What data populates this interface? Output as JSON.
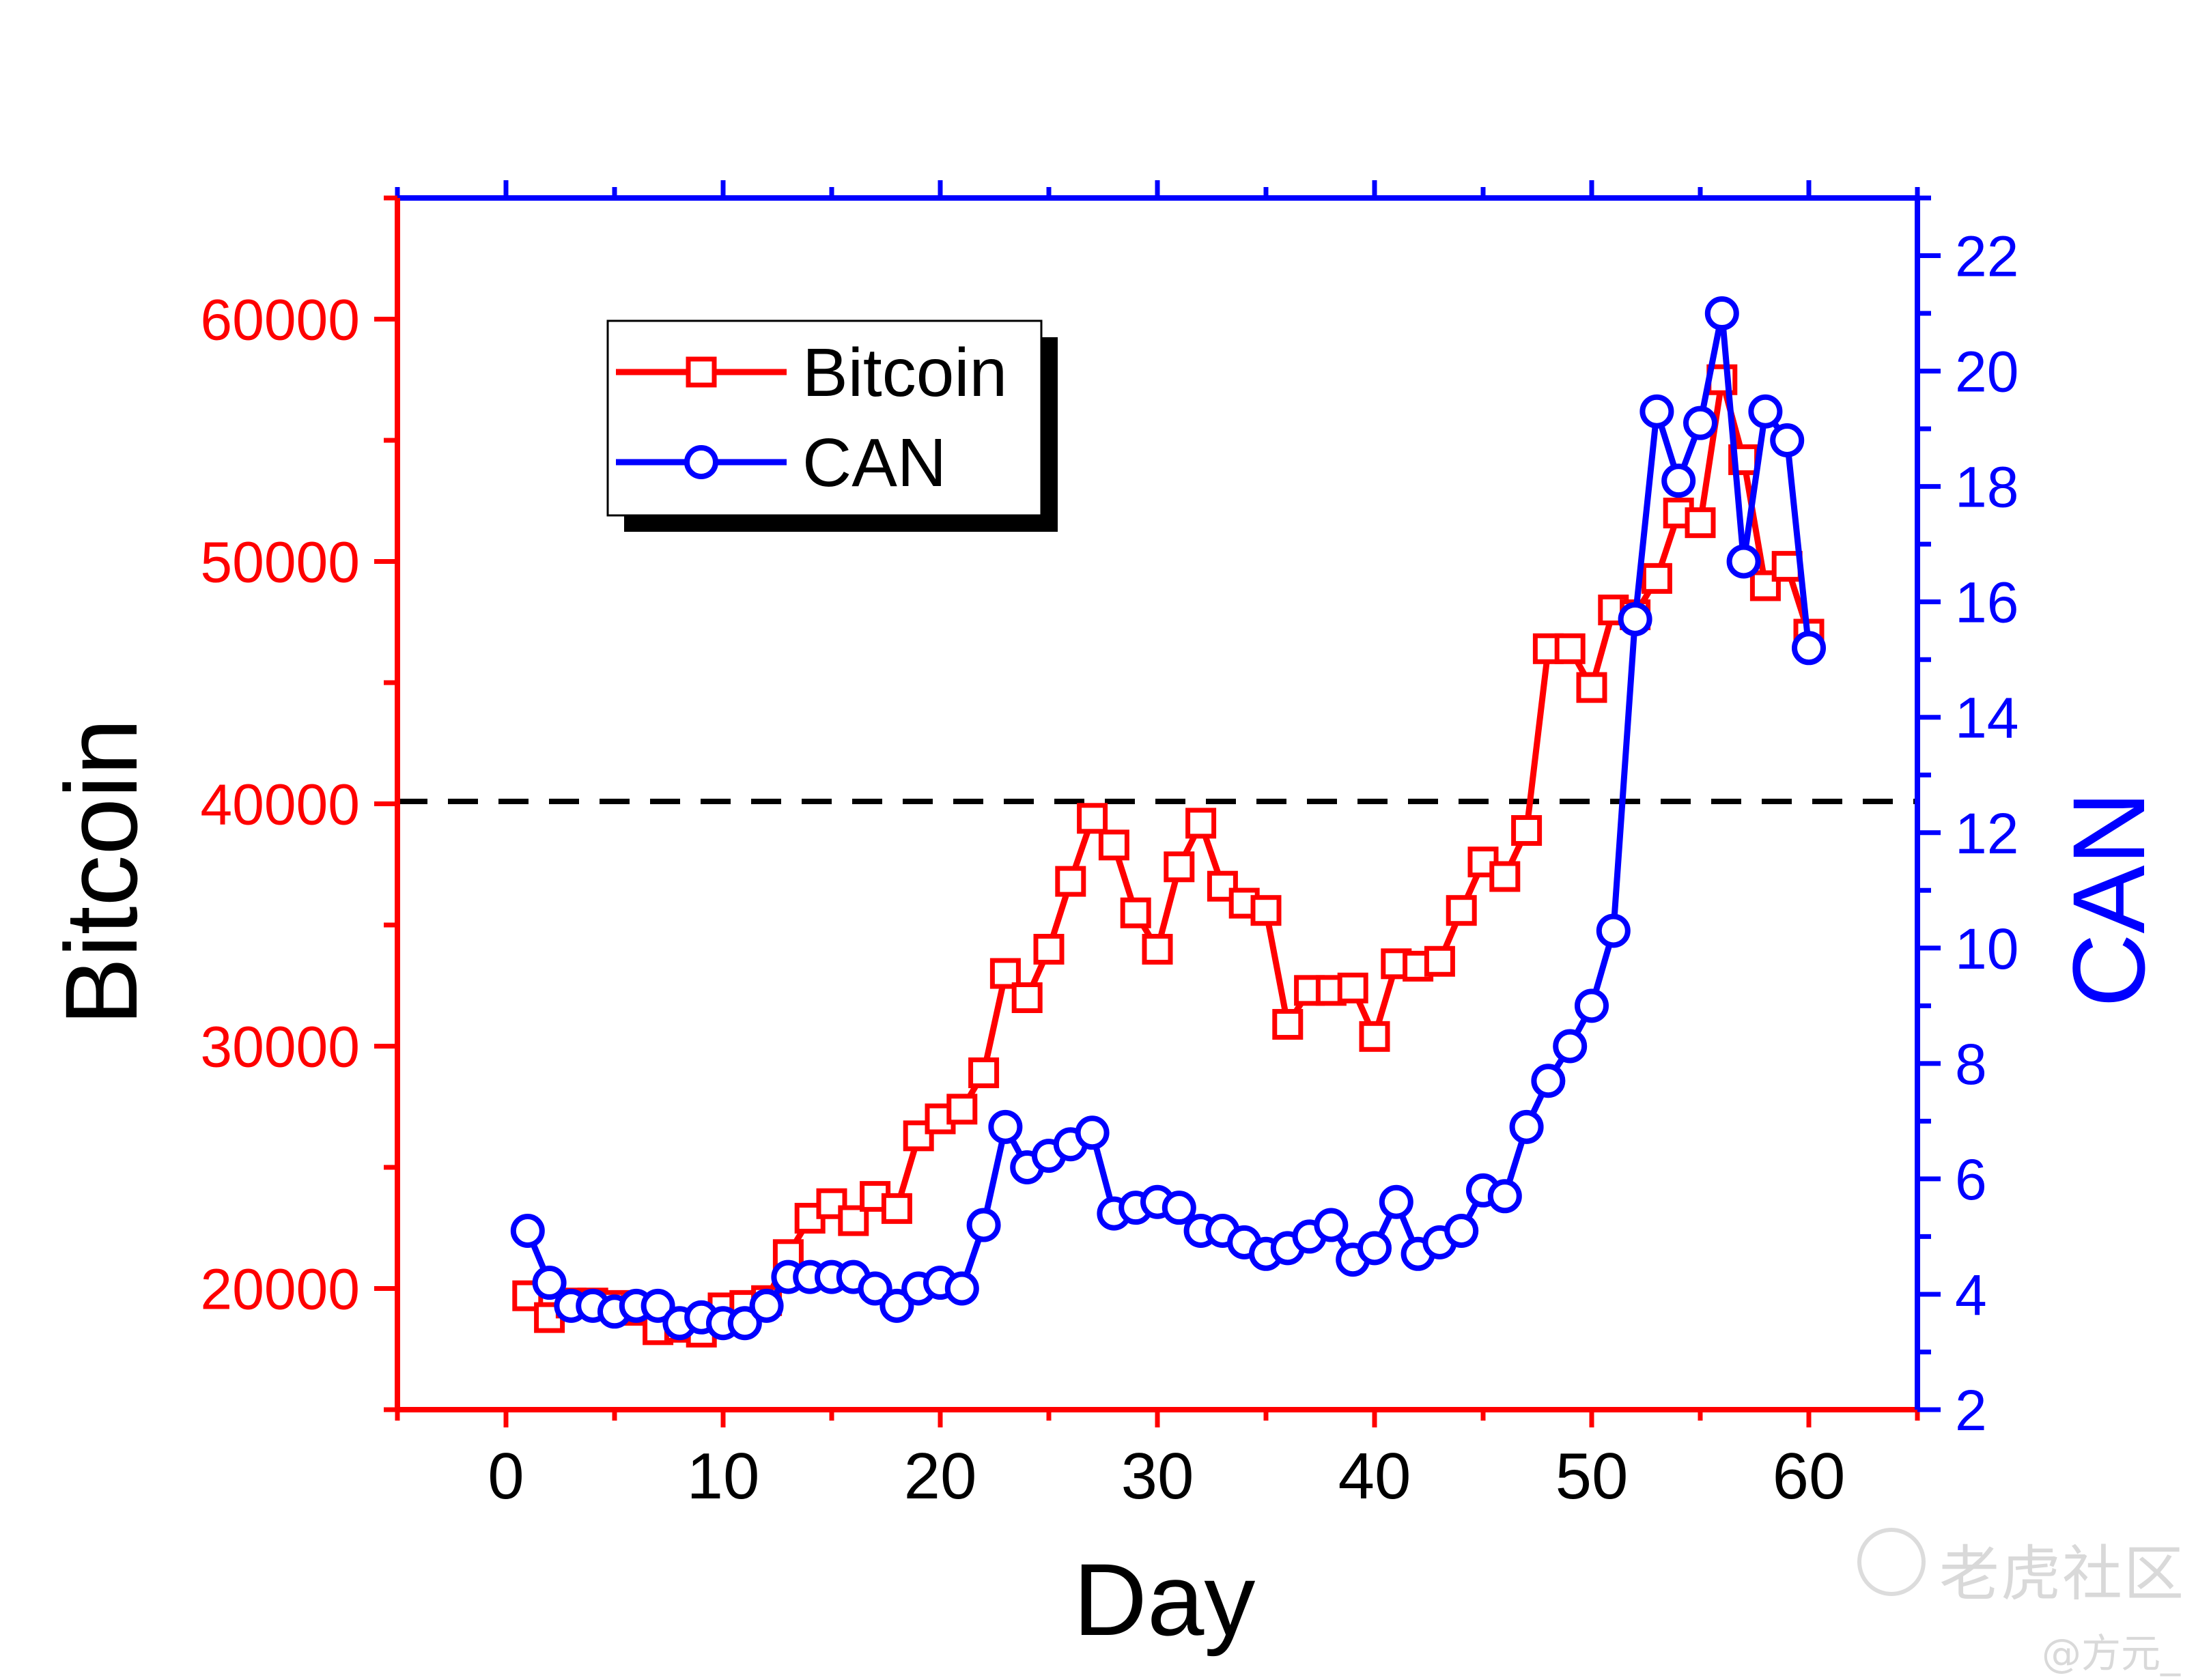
{
  "chart_data": {
    "type": "line",
    "xlabel": "Day",
    "ylabel_left": "Bitcoin",
    "ylabel_right": "CAN",
    "xlim": [
      -5,
      65
    ],
    "ylim_left": [
      15000,
      65000
    ],
    "ylim_right": [
      2,
      23
    ],
    "x_ticks": [
      0,
      10,
      20,
      30,
      40,
      50,
      60
    ],
    "y_ticks_left": [
      20000,
      30000,
      40000,
      50000,
      60000
    ],
    "y_ticks_right": [
      2,
      4,
      6,
      8,
      10,
      12,
      14,
      16,
      18,
      20,
      22
    ],
    "threshold_line": {
      "axis": "left",
      "value": 40100,
      "style": "dashed",
      "color": "#000000"
    },
    "legend_position": "top-left",
    "series": [
      {
        "name": "Bitcoin",
        "axis": "left",
        "marker": "square",
        "color": "#ff0000",
        "x": [
          1,
          2,
          3,
          4,
          5,
          6,
          7,
          8,
          9,
          10,
          11,
          12,
          13,
          14,
          15,
          16,
          17,
          18,
          19,
          20,
          21,
          22,
          23,
          24,
          25,
          26,
          27,
          28,
          29,
          30,
          31,
          32,
          33,
          34,
          35,
          36,
          37,
          38,
          39,
          40,
          41,
          42,
          43,
          44,
          45,
          46,
          47,
          48,
          49,
          50,
          51,
          52,
          53,
          54,
          55,
          56,
          57,
          58,
          59,
          60
        ],
        "values": [
          19700,
          18800,
          19400,
          19400,
          19300,
          19100,
          18300,
          18400,
          18200,
          19200,
          19300,
          19500,
          21400,
          22900,
          23500,
          22800,
          23800,
          23300,
          26300,
          27000,
          27400,
          28900,
          33000,
          32000,
          34000,
          36800,
          39400,
          38300,
          35500,
          34000,
          37400,
          39200,
          36600,
          35900,
          35600,
          30900,
          32300,
          32300,
          32400,
          30400,
          33400,
          33300,
          33500,
          35600,
          37600,
          37000,
          38900,
          46400,
          46400,
          44800,
          48000,
          47800,
          49300,
          52000,
          51600,
          57500,
          54200,
          49000,
          49800,
          47000
        ]
      },
      {
        "name": "CAN",
        "axis": "right",
        "marker": "circle",
        "color": "#0000ff",
        "x": [
          1,
          2,
          3,
          4,
          5,
          6,
          7,
          8,
          9,
          10,
          11,
          12,
          13,
          14,
          15,
          16,
          17,
          18,
          19,
          20,
          21,
          22,
          23,
          24,
          25,
          26,
          27,
          28,
          29,
          30,
          31,
          32,
          33,
          34,
          35,
          36,
          37,
          38,
          39,
          40,
          41,
          42,
          43,
          44,
          45,
          46,
          47,
          48,
          49,
          50,
          51,
          52,
          53,
          54,
          55,
          56,
          57,
          58,
          59,
          60
        ],
        "values": [
          5.1,
          4.2,
          3.8,
          3.8,
          3.7,
          3.8,
          3.8,
          3.5,
          3.6,
          3.5,
          3.5,
          3.8,
          4.3,
          4.3,
          4.3,
          4.3,
          4.1,
          3.8,
          4.1,
          4.2,
          4.1,
          5.2,
          6.9,
          6.2,
          6.4,
          6.6,
          6.8,
          5.4,
          5.5,
          5.6,
          5.5,
          5.1,
          5.1,
          4.9,
          4.7,
          4.8,
          5.0,
          5.2,
          4.6,
          4.8,
          5.6,
          4.7,
          4.9,
          5.1,
          5.8,
          5.7,
          6.9,
          7.7,
          8.3,
          9.0,
          10.3,
          15.7,
          19.3,
          18.1,
          19.1,
          21.0,
          16.7,
          19.3,
          18.8,
          15.2
        ]
      }
    ]
  },
  "watermark": {
    "site": "老虎社区",
    "user": "@方元_"
  }
}
